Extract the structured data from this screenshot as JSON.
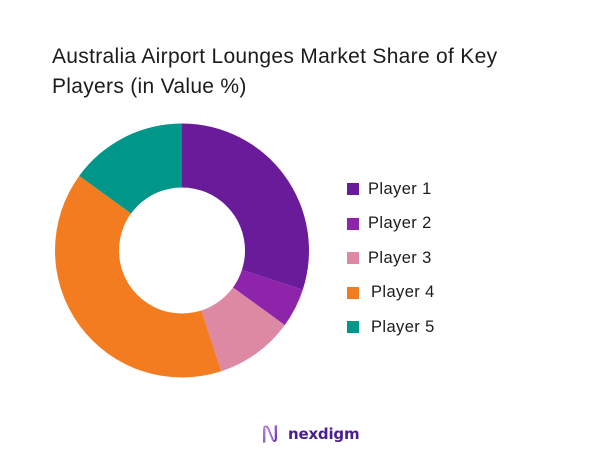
{
  "title": {
    "line1": "Australia Airport Lounges Market Share of Key",
    "line2": "Players (in Value %)"
  },
  "chart_data": {
    "type": "pie",
    "variant": "donut",
    "title": "Australia Airport Lounges Market Share of Key Players (in Value %)",
    "categories": [
      "Player 1",
      "Player 2",
      "Player 3",
      "Player 4",
      "Player 5"
    ],
    "values": [
      30,
      5,
      10,
      40,
      15
    ],
    "unit": "%",
    "colors": [
      "#6a1b9a",
      "#8e24aa",
      "#de89a3",
      "#f47c20",
      "#00968a"
    ],
    "start_angle_deg": 0,
    "direction": "clockwise",
    "legend_position": "right",
    "data_labels": false
  },
  "legend": {
    "items": [
      {
        "label": "Player 1",
        "color": "#6a1b9a"
      },
      {
        "label": "Player 2",
        "color": "#8e24aa"
      },
      {
        "label": "Player 3",
        "color": "#de89a3"
      },
      {
        "label": "Player 4",
        "color": "#f47c20"
      },
      {
        "label": "Player 5",
        "color": "#00968a"
      }
    ]
  },
  "branding": {
    "logo_text": "nexdigm",
    "logo_icon": "nexdigm-wave-n-icon",
    "logo_color": "#4b1d8f"
  }
}
